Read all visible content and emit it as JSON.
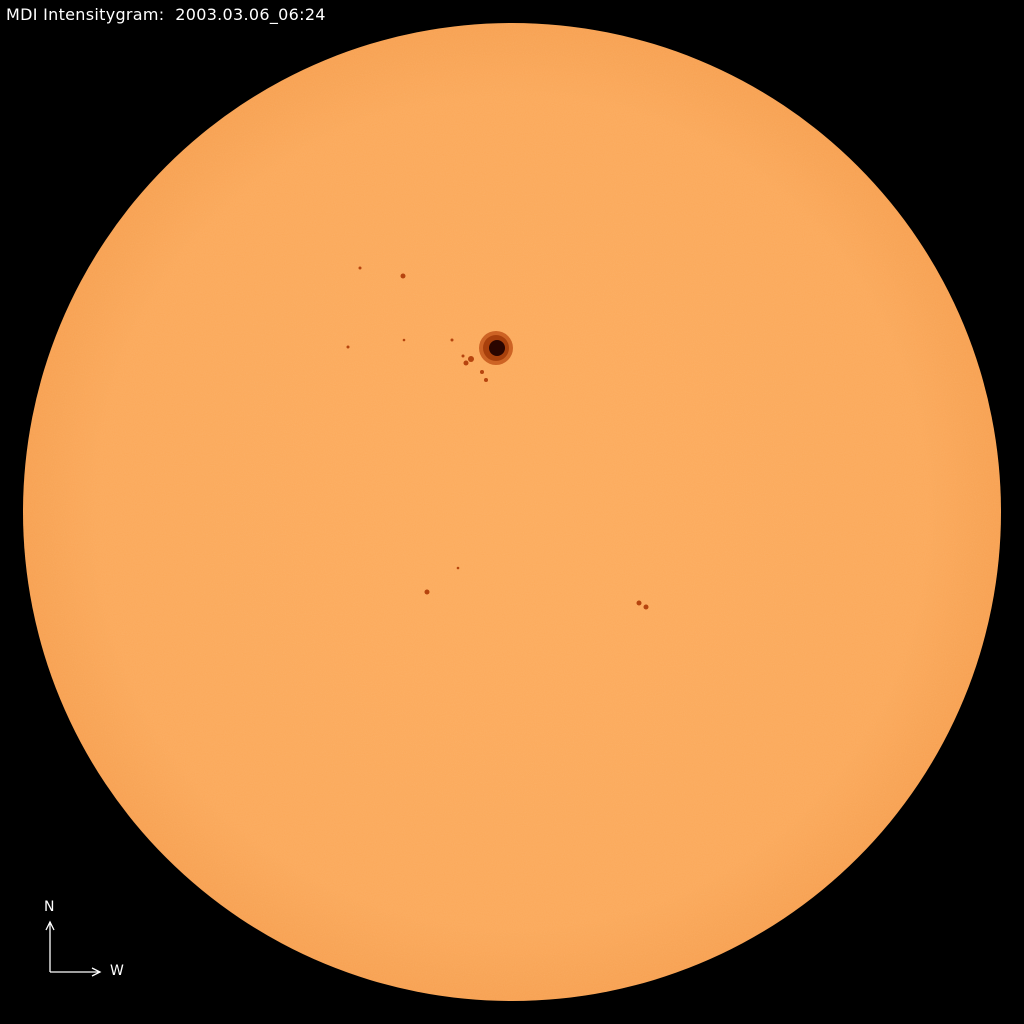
{
  "title": "MDI Intensitygram:  2003.03.06_06:24",
  "compass": {
    "north": "N",
    "west": "W"
  },
  "colors": {
    "background": "#000000",
    "disk": "#FBA95A",
    "umbra": "#2a0500",
    "penumbra": "#b8480e",
    "text": "#ffffff"
  }
}
